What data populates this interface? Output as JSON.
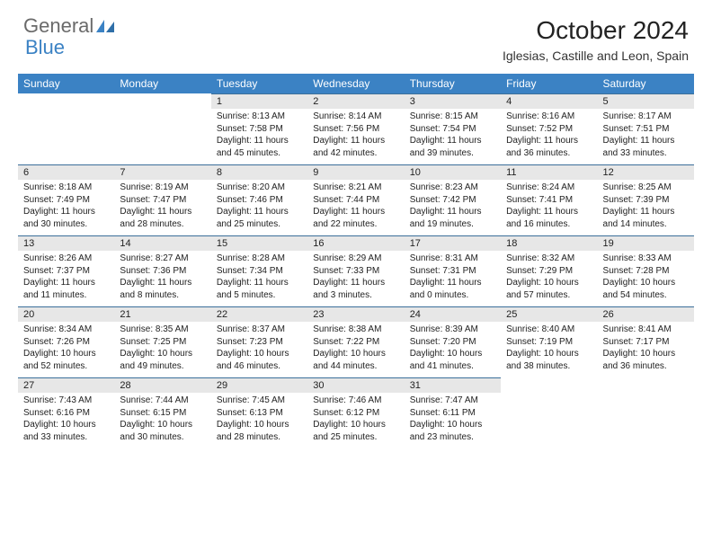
{
  "brand": {
    "part1": "General",
    "part2": "Blue"
  },
  "title": "October 2024",
  "location": "Iglesias, Castille and Leon, Spain",
  "colors": {
    "header_bg": "#3b82c4",
    "header_fg": "#ffffff",
    "daynum_bg": "#e7e7e7",
    "daynum_border": "#3b6f9a",
    "text": "#222222",
    "logo_gray": "#6a6a6a",
    "logo_blue": "#3b82c4",
    "page_bg": "#ffffff"
  },
  "weekdays": [
    "Sunday",
    "Monday",
    "Tuesday",
    "Wednesday",
    "Thursday",
    "Friday",
    "Saturday"
  ],
  "weeks": [
    [
      null,
      null,
      {
        "day": "1",
        "sunrise": "Sunrise: 8:13 AM",
        "sunset": "Sunset: 7:58 PM",
        "daylight": "Daylight: 11 hours and 45 minutes."
      },
      {
        "day": "2",
        "sunrise": "Sunrise: 8:14 AM",
        "sunset": "Sunset: 7:56 PM",
        "daylight": "Daylight: 11 hours and 42 minutes."
      },
      {
        "day": "3",
        "sunrise": "Sunrise: 8:15 AM",
        "sunset": "Sunset: 7:54 PM",
        "daylight": "Daylight: 11 hours and 39 minutes."
      },
      {
        "day": "4",
        "sunrise": "Sunrise: 8:16 AM",
        "sunset": "Sunset: 7:52 PM",
        "daylight": "Daylight: 11 hours and 36 minutes."
      },
      {
        "day": "5",
        "sunrise": "Sunrise: 8:17 AM",
        "sunset": "Sunset: 7:51 PM",
        "daylight": "Daylight: 11 hours and 33 minutes."
      }
    ],
    [
      {
        "day": "6",
        "sunrise": "Sunrise: 8:18 AM",
        "sunset": "Sunset: 7:49 PM",
        "daylight": "Daylight: 11 hours and 30 minutes."
      },
      {
        "day": "7",
        "sunrise": "Sunrise: 8:19 AM",
        "sunset": "Sunset: 7:47 PM",
        "daylight": "Daylight: 11 hours and 28 minutes."
      },
      {
        "day": "8",
        "sunrise": "Sunrise: 8:20 AM",
        "sunset": "Sunset: 7:46 PM",
        "daylight": "Daylight: 11 hours and 25 minutes."
      },
      {
        "day": "9",
        "sunrise": "Sunrise: 8:21 AM",
        "sunset": "Sunset: 7:44 PM",
        "daylight": "Daylight: 11 hours and 22 minutes."
      },
      {
        "day": "10",
        "sunrise": "Sunrise: 8:23 AM",
        "sunset": "Sunset: 7:42 PM",
        "daylight": "Daylight: 11 hours and 19 minutes."
      },
      {
        "day": "11",
        "sunrise": "Sunrise: 8:24 AM",
        "sunset": "Sunset: 7:41 PM",
        "daylight": "Daylight: 11 hours and 16 minutes."
      },
      {
        "day": "12",
        "sunrise": "Sunrise: 8:25 AM",
        "sunset": "Sunset: 7:39 PM",
        "daylight": "Daylight: 11 hours and 14 minutes."
      }
    ],
    [
      {
        "day": "13",
        "sunrise": "Sunrise: 8:26 AM",
        "sunset": "Sunset: 7:37 PM",
        "daylight": "Daylight: 11 hours and 11 minutes."
      },
      {
        "day": "14",
        "sunrise": "Sunrise: 8:27 AM",
        "sunset": "Sunset: 7:36 PM",
        "daylight": "Daylight: 11 hours and 8 minutes."
      },
      {
        "day": "15",
        "sunrise": "Sunrise: 8:28 AM",
        "sunset": "Sunset: 7:34 PM",
        "daylight": "Daylight: 11 hours and 5 minutes."
      },
      {
        "day": "16",
        "sunrise": "Sunrise: 8:29 AM",
        "sunset": "Sunset: 7:33 PM",
        "daylight": "Daylight: 11 hours and 3 minutes."
      },
      {
        "day": "17",
        "sunrise": "Sunrise: 8:31 AM",
        "sunset": "Sunset: 7:31 PM",
        "daylight": "Daylight: 11 hours and 0 minutes."
      },
      {
        "day": "18",
        "sunrise": "Sunrise: 8:32 AM",
        "sunset": "Sunset: 7:29 PM",
        "daylight": "Daylight: 10 hours and 57 minutes."
      },
      {
        "day": "19",
        "sunrise": "Sunrise: 8:33 AM",
        "sunset": "Sunset: 7:28 PM",
        "daylight": "Daylight: 10 hours and 54 minutes."
      }
    ],
    [
      {
        "day": "20",
        "sunrise": "Sunrise: 8:34 AM",
        "sunset": "Sunset: 7:26 PM",
        "daylight": "Daylight: 10 hours and 52 minutes."
      },
      {
        "day": "21",
        "sunrise": "Sunrise: 8:35 AM",
        "sunset": "Sunset: 7:25 PM",
        "daylight": "Daylight: 10 hours and 49 minutes."
      },
      {
        "day": "22",
        "sunrise": "Sunrise: 8:37 AM",
        "sunset": "Sunset: 7:23 PM",
        "daylight": "Daylight: 10 hours and 46 minutes."
      },
      {
        "day": "23",
        "sunrise": "Sunrise: 8:38 AM",
        "sunset": "Sunset: 7:22 PM",
        "daylight": "Daylight: 10 hours and 44 minutes."
      },
      {
        "day": "24",
        "sunrise": "Sunrise: 8:39 AM",
        "sunset": "Sunset: 7:20 PM",
        "daylight": "Daylight: 10 hours and 41 minutes."
      },
      {
        "day": "25",
        "sunrise": "Sunrise: 8:40 AM",
        "sunset": "Sunset: 7:19 PM",
        "daylight": "Daylight: 10 hours and 38 minutes."
      },
      {
        "day": "26",
        "sunrise": "Sunrise: 8:41 AM",
        "sunset": "Sunset: 7:17 PM",
        "daylight": "Daylight: 10 hours and 36 minutes."
      }
    ],
    [
      {
        "day": "27",
        "sunrise": "Sunrise: 7:43 AM",
        "sunset": "Sunset: 6:16 PM",
        "daylight": "Daylight: 10 hours and 33 minutes."
      },
      {
        "day": "28",
        "sunrise": "Sunrise: 7:44 AM",
        "sunset": "Sunset: 6:15 PM",
        "daylight": "Daylight: 10 hours and 30 minutes."
      },
      {
        "day": "29",
        "sunrise": "Sunrise: 7:45 AM",
        "sunset": "Sunset: 6:13 PM",
        "daylight": "Daylight: 10 hours and 28 minutes."
      },
      {
        "day": "30",
        "sunrise": "Sunrise: 7:46 AM",
        "sunset": "Sunset: 6:12 PM",
        "daylight": "Daylight: 10 hours and 25 minutes."
      },
      {
        "day": "31",
        "sunrise": "Sunrise: 7:47 AM",
        "sunset": "Sunset: 6:11 PM",
        "daylight": "Daylight: 10 hours and 23 minutes."
      },
      null,
      null
    ]
  ]
}
